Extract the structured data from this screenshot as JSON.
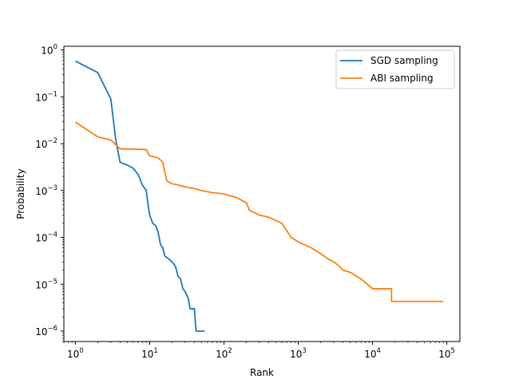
{
  "chart_data": {
    "type": "line",
    "title": "",
    "xlabel": "Rank",
    "ylabel": "Probability",
    "xscale": "log",
    "yscale": "log",
    "xlim": [
      0.7,
      150000
    ],
    "ylim": [
      6e-07,
      1.2
    ],
    "grid": false,
    "legend_position": "top-right",
    "x_ticks": [
      {
        "value": 1,
        "base": "10",
        "exp": "0"
      },
      {
        "value": 10,
        "base": "10",
        "exp": "1"
      },
      {
        "value": 100,
        "base": "10",
        "exp": "2"
      },
      {
        "value": 1000,
        "base": "10",
        "exp": "3"
      },
      {
        "value": 10000,
        "base": "10",
        "exp": "4"
      },
      {
        "value": 100000,
        "base": "10",
        "exp": "5"
      }
    ],
    "y_ticks": [
      {
        "value": 1e-06,
        "base": "10",
        "exp": "−6"
      },
      {
        "value": 1e-05,
        "base": "10",
        "exp": "−5"
      },
      {
        "value": 0.0001,
        "base": "10",
        "exp": "−4"
      },
      {
        "value": 0.001,
        "base": "10",
        "exp": "−3"
      },
      {
        "value": 0.01,
        "base": "10",
        "exp": "−2"
      },
      {
        "value": 0.1,
        "base": "10",
        "exp": "−1"
      },
      {
        "value": 1,
        "base": "10",
        "exp": "0"
      }
    ],
    "series": [
      {
        "name": "SGD sampling",
        "color": "#1f77b4",
        "points": [
          [
            1,
            0.58
          ],
          [
            2,
            0.33
          ],
          [
            3,
            0.09
          ],
          [
            3.5,
            0.012
          ],
          [
            4,
            0.004
          ],
          [
            5,
            0.0035
          ],
          [
            6,
            0.003
          ],
          [
            7,
            0.0022
          ],
          [
            8,
            0.0013
          ],
          [
            9,
            0.001
          ],
          [
            9.5,
            0.0005
          ],
          [
            10,
            0.0003
          ],
          [
            11,
            0.0002
          ],
          [
            12,
            0.00018
          ],
          [
            13,
            0.00013
          ],
          [
            14,
            7e-05
          ],
          [
            15,
            6e-05
          ],
          [
            16,
            4e-05
          ],
          [
            18,
            3.5e-05
          ],
          [
            20,
            3e-05
          ],
          [
            22,
            2.5e-05
          ],
          [
            23,
            2e-05
          ],
          [
            24,
            1.5e-05
          ],
          [
            26,
            1.3e-05
          ],
          [
            28,
            8e-06
          ],
          [
            30,
            7e-06
          ],
          [
            33,
            5e-06
          ],
          [
            35,
            3e-06
          ],
          [
            40,
            3e-06
          ],
          [
            42,
            1e-06
          ],
          [
            55,
            1e-06
          ]
        ]
      },
      {
        "name": "ABI sampling",
        "color": "#ff7f0e",
        "points": [
          [
            1,
            0.029
          ],
          [
            2,
            0.014
          ],
          [
            3,
            0.012
          ],
          [
            4,
            0.0078
          ],
          [
            9,
            0.0075
          ],
          [
            10,
            0.0055
          ],
          [
            13,
            0.005
          ],
          [
            15,
            0.004
          ],
          [
            17,
            0.0016
          ],
          [
            20,
            0.0014
          ],
          [
            25,
            0.0013
          ],
          [
            30,
            0.0012
          ],
          [
            40,
            0.0011
          ],
          [
            50,
            0.001
          ],
          [
            70,
            0.0009
          ],
          [
            100,
            0.00085
          ],
          [
            150,
            0.0007
          ],
          [
            200,
            0.00055
          ],
          [
            220,
            0.00038
          ],
          [
            300,
            0.0003
          ],
          [
            400,
            0.00027
          ],
          [
            500,
            0.00023
          ],
          [
            600,
            0.0002
          ],
          [
            700,
            0.00014
          ],
          [
            800,
            0.0001
          ],
          [
            900,
            9e-05
          ],
          [
            1000,
            8e-05
          ],
          [
            1500,
            6e-05
          ],
          [
            2000,
            4.5e-05
          ],
          [
            2500,
            3.5e-05
          ],
          [
            3000,
            3e-05
          ],
          [
            3500,
            2.5e-05
          ],
          [
            4000,
            2e-05
          ],
          [
            5000,
            1.8e-05
          ],
          [
            7000,
            1.3e-05
          ],
          [
            10000,
            8e-06
          ],
          [
            18000,
            8e-06
          ],
          [
            18000,
            4.3e-06
          ],
          [
            90000,
            4.3e-06
          ]
        ]
      }
    ]
  }
}
